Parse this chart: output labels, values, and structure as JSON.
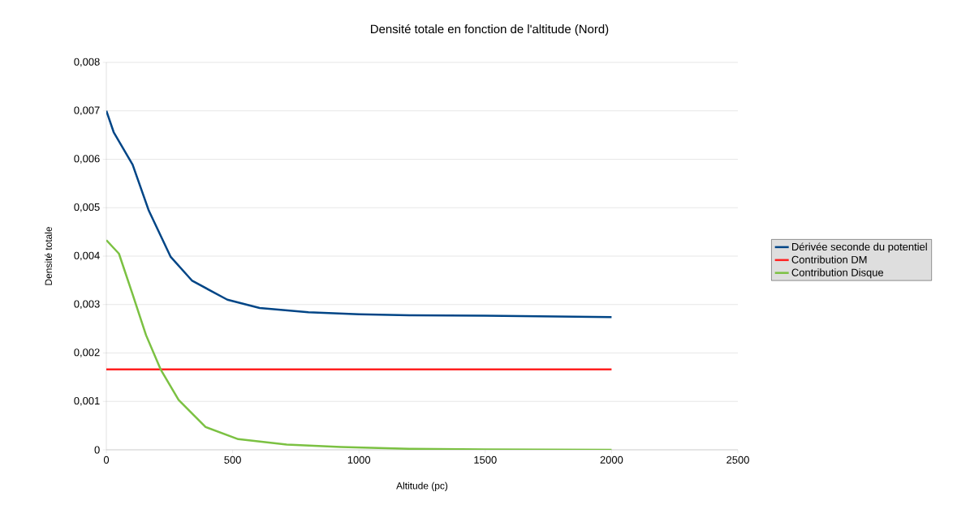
{
  "chart_data": {
    "type": "line",
    "title": "Densité totale en fonction de l'altitude (Nord)",
    "xlabel": "Altitude (pc)",
    "ylabel": "Densité totale",
    "series": [
      {
        "name": "Dérivée seconde du potentiel",
        "color": "#004586",
        "x": [
          0,
          29,
          104,
          168,
          254,
          340,
          479,
          607,
          800,
          1000,
          1200,
          1500,
          2000
        ],
        "values": [
          0.007,
          0.00656,
          0.00589,
          0.00494,
          0.00399,
          0.00349,
          0.0031,
          0.00293,
          0.00284,
          0.0028,
          0.00278,
          0.00277,
          0.00274
        ]
      },
      {
        "name": "Contribution DM",
        "color": "#ff2020",
        "x": [
          0,
          2000
        ],
        "values": [
          0.00166,
          0.00166
        ]
      },
      {
        "name": "Contribution Disque",
        "color": "#7bc142",
        "x": [
          0,
          50,
          104,
          157,
          216,
          286,
          393,
          522,
          714,
          929,
          1200,
          1500,
          2000
        ],
        "values": [
          0.00433,
          0.00405,
          0.00321,
          0.00237,
          0.00165,
          0.00103,
          0.00047,
          0.00022,
          0.00011,
          6e-05,
          2e-05,
          1e-05,
          0.0
        ]
      }
    ],
    "xlim": [
      0,
      2500
    ],
    "xticks": [
      0,
      500,
      1000,
      1500,
      2000,
      2500
    ],
    "ylim": [
      0,
      0.008
    ],
    "yticks": [
      {
        "value": 0,
        "label": "0"
      },
      {
        "value": 0.001,
        "label": "0,001"
      },
      {
        "value": 0.002,
        "label": "0,002"
      },
      {
        "value": 0.003,
        "label": "0,003"
      },
      {
        "value": 0.004,
        "label": "0,004"
      },
      {
        "value": 0.005,
        "label": "0,005"
      },
      {
        "value": 0.006,
        "label": "0,006"
      },
      {
        "value": 0.007,
        "label": "0,007"
      },
      {
        "value": 0.008,
        "label": "0,008"
      }
    ],
    "grid": "y",
    "legend": "right",
    "marker": "none",
    "line_style": "solid"
  }
}
